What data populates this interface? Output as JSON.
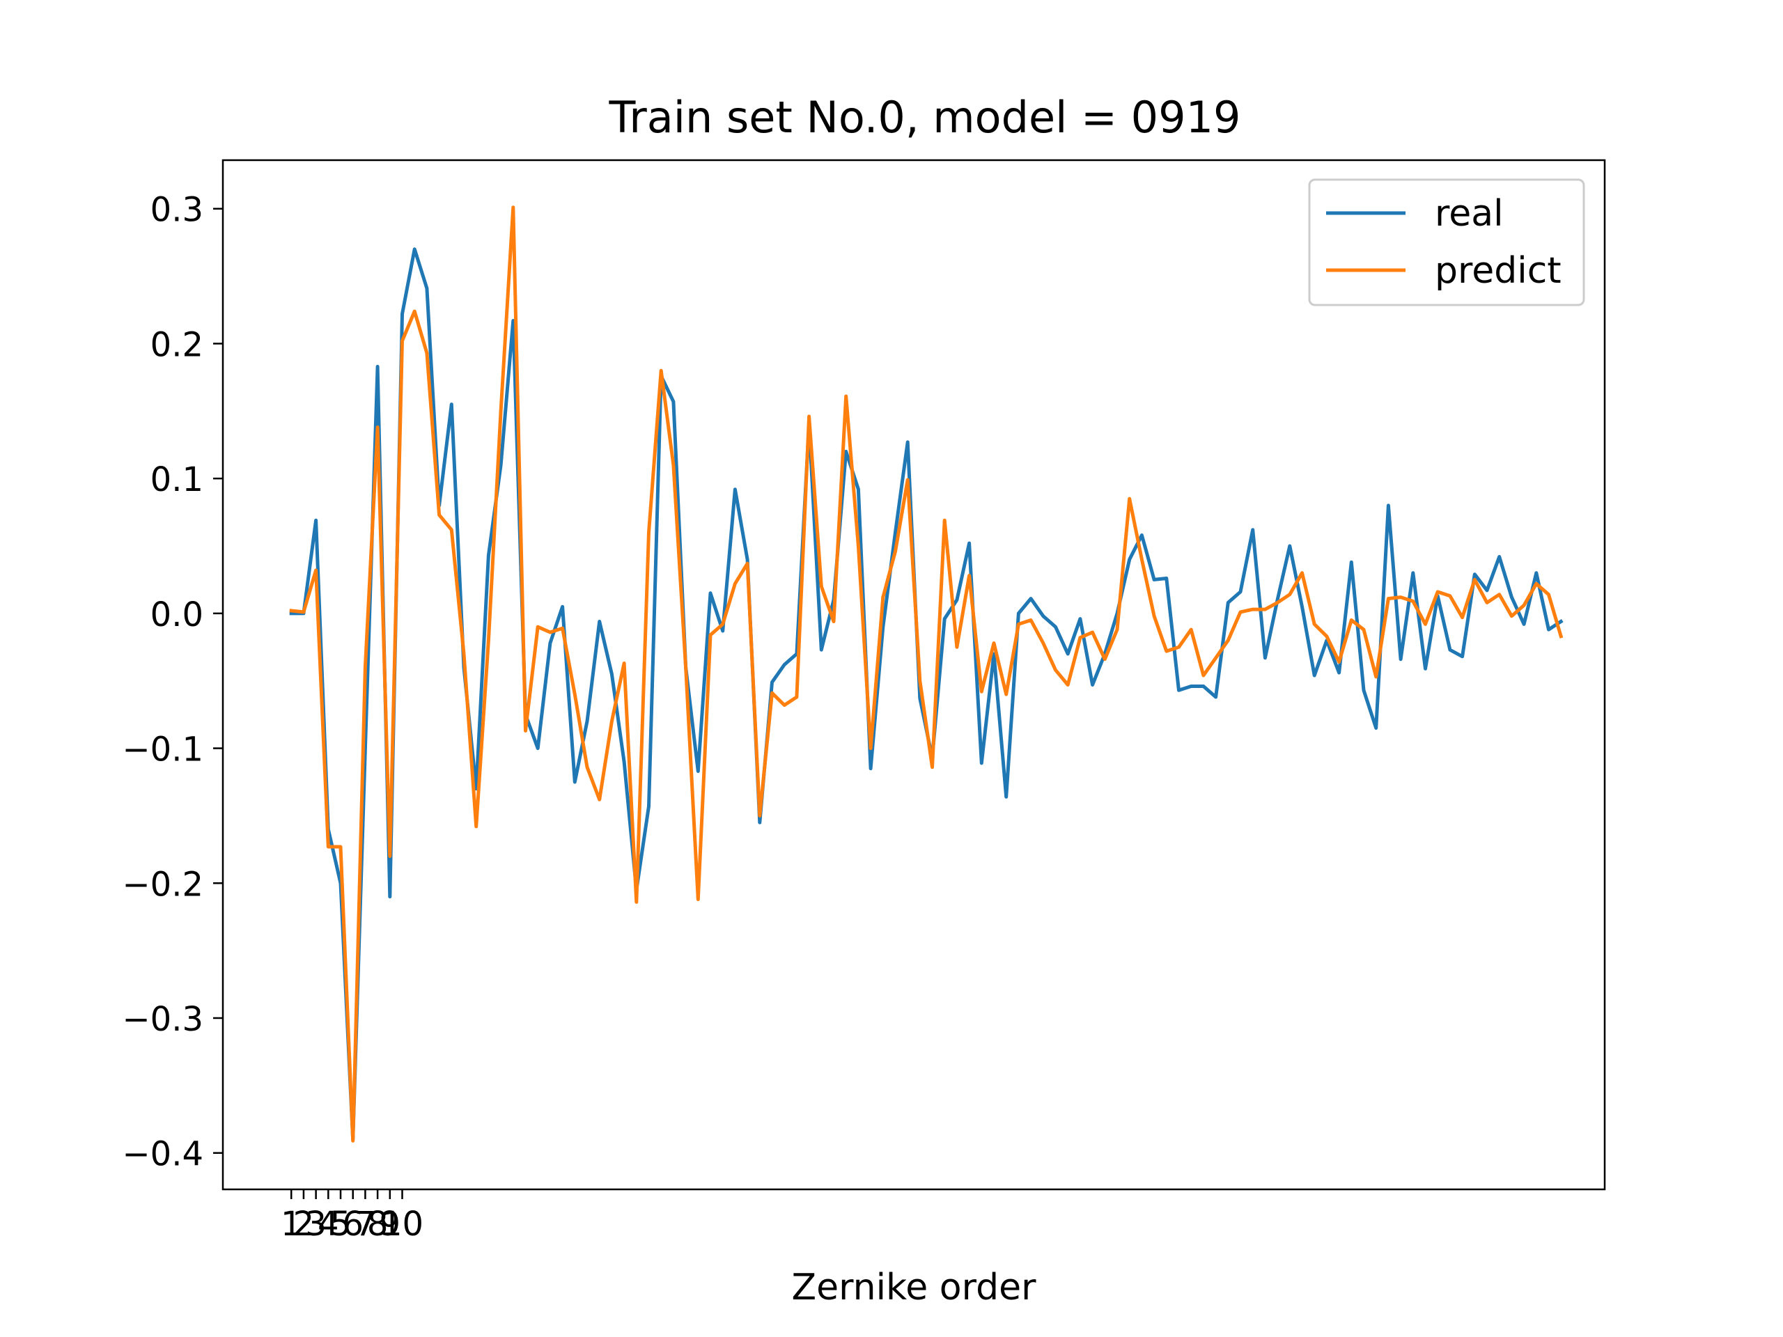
{
  "chart_data": {
    "type": "line",
    "title": "Train set No.0, model = 0919",
    "xlabel": "Zernike order",
    "ylabel": "",
    "xlim": [
      -4.55,
      107.55
    ],
    "ylim": [
      -0.427,
      0.336
    ],
    "grid": false,
    "legend_position": "top-right",
    "x_ticks": [
      1,
      2,
      3,
      4,
      5,
      6,
      7,
      8,
      9,
      10
    ],
    "x_tick_labels": [
      "1",
      "2",
      "3",
      "4",
      "5",
      "6",
      "7",
      "8",
      "9",
      "10"
    ],
    "y_ticks": [
      0.3,
      0.2,
      0.1,
      0.0,
      -0.1,
      -0.2,
      -0.3,
      -0.4
    ],
    "y_tick_labels": [
      "0.3",
      "0.2",
      "0.1",
      "0.0",
      "−0.1",
      "−0.2",
      "−0.3",
      "−0.4"
    ],
    "series": [
      {
        "name": "real",
        "color": "#1f77b4",
        "values": [
          0.0,
          0.0,
          0.069,
          -0.16,
          -0.2,
          -0.39,
          -0.1,
          0.183,
          -0.21,
          0.222,
          0.27,
          0.241,
          0.08,
          0.155,
          -0.04,
          -0.13,
          0.043,
          0.11,
          0.217,
          -0.075,
          -0.1,
          -0.022,
          0.005,
          -0.125,
          -0.08,
          -0.006,
          -0.045,
          -0.11,
          -0.205,
          -0.143,
          0.176,
          0.157,
          -0.04,
          -0.117,
          0.015,
          -0.013,
          0.092,
          0.04,
          -0.155,
          -0.051,
          -0.038,
          -0.03,
          0.14,
          -0.027,
          0.01,
          0.12,
          0.092,
          -0.115,
          -0.01,
          0.06,
          0.127,
          -0.063,
          -0.107,
          -0.004,
          0.01,
          0.052,
          -0.111,
          -0.03,
          -0.136,
          0.0,
          0.011,
          -0.002,
          -0.01,
          -0.03,
          -0.004,
          -0.053,
          -0.03,
          0.0,
          0.04,
          0.058,
          0.025,
          0.026,
          -0.057,
          -0.054,
          -0.054,
          -0.062,
          0.008,
          0.016,
          0.062,
          -0.033,
          0.01,
          0.05,
          0.005,
          -0.046,
          -0.02,
          -0.044,
          0.038,
          -0.057,
          -0.085,
          0.08,
          -0.034,
          0.03,
          -0.041,
          0.013,
          -0.027,
          -0.032,
          0.029,
          0.017,
          0.042,
          0.012,
          -0.008,
          0.03,
          -0.012,
          -0.006
        ]
      },
      {
        "name": "predict",
        "color": "#ff7f0e",
        "values": [
          0.002,
          0.001,
          0.032,
          -0.173,
          -0.173,
          -0.391,
          -0.04,
          0.138,
          -0.18,
          0.202,
          0.224,
          0.193,
          0.073,
          0.062,
          -0.03,
          -0.158,
          -0.02,
          0.15,
          0.301,
          -0.087,
          -0.01,
          -0.014,
          -0.011,
          -0.06,
          -0.114,
          -0.138,
          -0.08,
          -0.037,
          -0.214,
          0.06,
          0.18,
          0.11,
          -0.04,
          -0.212,
          -0.016,
          -0.008,
          0.022,
          0.037,
          -0.15,
          -0.059,
          -0.068,
          -0.062,
          0.146,
          0.02,
          -0.006,
          0.161,
          0.05,
          -0.1,
          0.012,
          0.046,
          0.099,
          -0.05,
          -0.114,
          0.069,
          -0.025,
          0.028,
          -0.058,
          -0.022,
          -0.06,
          -0.008,
          -0.005,
          -0.022,
          -0.042,
          -0.053,
          -0.018,
          -0.014,
          -0.034,
          -0.012,
          0.085,
          0.04,
          -0.002,
          -0.028,
          -0.025,
          -0.012,
          -0.046,
          -0.033,
          -0.02,
          0.001,
          0.003,
          0.003,
          0.008,
          0.014,
          0.03,
          -0.008,
          -0.017,
          -0.036,
          -0.005,
          -0.012,
          -0.047,
          0.011,
          0.012,
          0.009,
          -0.008,
          0.016,
          0.013,
          -0.003,
          0.025,
          0.008,
          0.014,
          -0.002,
          0.006,
          0.022,
          0.014,
          -0.017
        ]
      }
    ]
  }
}
